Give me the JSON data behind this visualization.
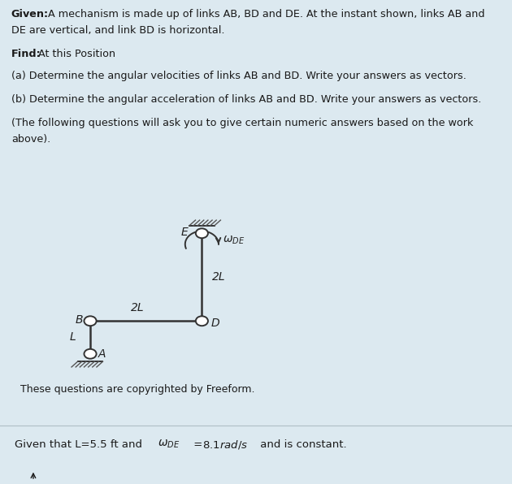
{
  "bg_color": "#dce9f0",
  "panel_bg": "#ffffff",
  "bottom_bg": "#f0f4f7",
  "text_color": "#1a1a1a",
  "given_bold": "Given:",
  "given_rest": " A mechanism is made up of links AB, BD and DE. At the instant shown, links AB and\nDE are vertical, and link BD is horizontal.",
  "find_bold": "Find:",
  "find_rest": " At this Position",
  "part_a": "(a) Determine the angular velocities of links AB and BD. Write your answers as vectors.",
  "part_b": "(b) Determine the angular acceleration of links AB and BD. Write your answers as vectors.",
  "part_c": "(The following questions will ask you to give certain numeric answers based on the work\nabove).",
  "copyright": "These questions are copyrighted by Freeform.",
  "bottom_line1": "Given that L=5.5 ft and ω",
  "bottom_eq": " = 8.1rad/s and is constant.",
  "link_color": "#333333",
  "hatch_color": "#555555"
}
